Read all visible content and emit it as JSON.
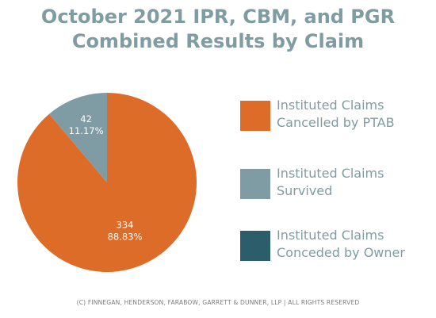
{
  "title": {
    "line1": "October 2021 IPR, CBM, and PGR",
    "line2": "Combined Results by Claim"
  },
  "chart_data": {
    "type": "pie",
    "title": "October 2021 IPR, CBM, and PGR Combined Results by Claim",
    "slices": [
      {
        "label": "Instituted Claims Cancelled by PTAB",
        "value": 334,
        "percent": 88.83,
        "color": "#de6c29",
        "count_text": "334",
        "percent_text": "88.83%"
      },
      {
        "label": "Instituted Claims Survived",
        "value": 42,
        "percent": 11.17,
        "color": "#7f9ba3",
        "count_text": "42",
        "percent_text": "11.17%"
      },
      {
        "label": "Instituted Claims Conceded by Owner",
        "value": 0,
        "percent": 0,
        "color": "#2c5d6a",
        "count_text": "",
        "percent_text": ""
      }
    ],
    "legend": {
      "placement": "right",
      "items": [
        {
          "line1": "Instituted Claims",
          "line2": "Cancelled by PTAB",
          "color": "#de6c29"
        },
        {
          "line1": "Instituted Claims",
          "line2": "Survived",
          "color": "#7f9ba3"
        },
        {
          "line1": "Instituted Claims",
          "line2": "Conceded by Owner",
          "color": "#2c5d6a"
        }
      ]
    }
  },
  "footer": "(C) FINNEGAN, HENDERSON, FARABOW, GARRETT & DUNNER, LLP | ALL RIGHTS RESERVED"
}
